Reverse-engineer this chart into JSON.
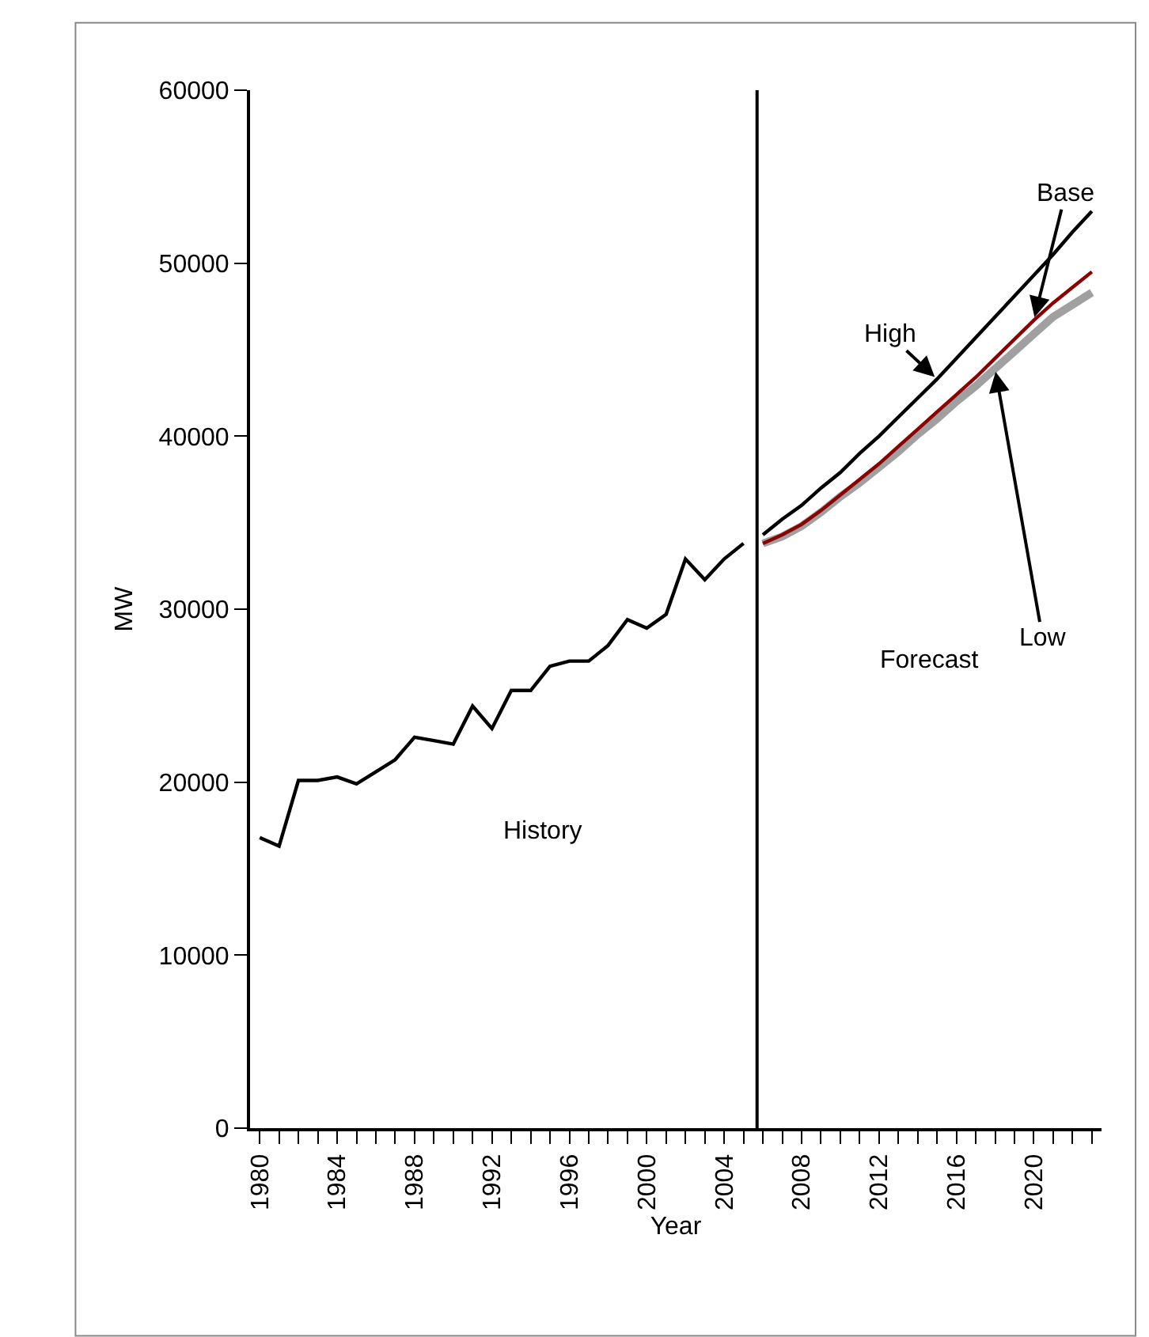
{
  "chart_data": {
    "type": "line",
    "xlabel": "Year",
    "ylabel": "MW",
    "xlim": [
      1979.5,
      2023.5
    ],
    "xticks": [
      {
        "value": 1980,
        "label": "1980"
      },
      {
        "value": 1981,
        "label": null
      },
      {
        "value": 1982,
        "label": null
      },
      {
        "value": 1983,
        "label": null
      },
      {
        "value": 1984,
        "label": "1984"
      },
      {
        "value": 1985,
        "label": null
      },
      {
        "value": 1986,
        "label": null
      },
      {
        "value": 1987,
        "label": null
      },
      {
        "value": 1988,
        "label": "1988"
      },
      {
        "value": 1989,
        "label": null
      },
      {
        "value": 1990,
        "label": null
      },
      {
        "value": 1991,
        "label": null
      },
      {
        "value": 1992,
        "label": "1992"
      },
      {
        "value": 1993,
        "label": null
      },
      {
        "value": 1994,
        "label": null
      },
      {
        "value": 1995,
        "label": null
      },
      {
        "value": 1996,
        "label": "1996"
      },
      {
        "value": 1997,
        "label": null
      },
      {
        "value": 1998,
        "label": null
      },
      {
        "value": 1999,
        "label": null
      },
      {
        "value": 2000,
        "label": "2000"
      },
      {
        "value": 2001,
        "label": null
      },
      {
        "value": 2002,
        "label": null
      },
      {
        "value": 2003,
        "label": null
      },
      {
        "value": 2004,
        "label": "2004"
      },
      {
        "value": 2005,
        "label": null
      },
      {
        "value": 2006,
        "label": null
      },
      {
        "value": 2007,
        "label": null
      },
      {
        "value": 2008,
        "label": "2008"
      },
      {
        "value": 2009,
        "label": null
      },
      {
        "value": 2010,
        "label": null
      },
      {
        "value": 2011,
        "label": null
      },
      {
        "value": 2012,
        "label": "2012"
      },
      {
        "value": 2013,
        "label": null
      },
      {
        "value": 2014,
        "label": null
      },
      {
        "value": 2015,
        "label": null
      },
      {
        "value": 2016,
        "label": "2016"
      },
      {
        "value": 2017,
        "label": null
      },
      {
        "value": 2018,
        "label": null
      },
      {
        "value": 2019,
        "label": null
      },
      {
        "value": 2020,
        "label": "2020"
      },
      {
        "value": 2021,
        "label": null
      },
      {
        "value": 2022,
        "label": null
      },
      {
        "value": 2023,
        "label": null
      }
    ],
    "ylim": [
      0,
      60000
    ],
    "yticks": [
      0,
      10000,
      20000,
      30000,
      40000,
      50000,
      60000
    ],
    "grid": false,
    "legend": false,
    "marker": "none",
    "line_style": "solid",
    "series": [
      {
        "color": "#a0a0a0",
        "name": "Low",
        "x": [
          2006,
          2007,
          2008,
          2009,
          2010,
          2011,
          2012,
          2013,
          2014,
          2015,
          2016,
          2017,
          2018,
          2019,
          2020,
          2021,
          2022,
          2023
        ],
        "values": [
          33800,
          34200,
          34800,
          35600,
          36500,
          37300,
          38200,
          39100,
          40100,
          41000,
          42000,
          42900,
          43900,
          44900,
          45900,
          46900,
          47600,
          48300
        ]
      },
      {
        "color": "#8b0000",
        "name": "Base",
        "x": [
          2006,
          2007,
          2008,
          2009,
          2010,
          2011,
          2012,
          2013,
          2014,
          2015,
          2016,
          2017,
          2018,
          2019,
          2020,
          2021,
          2022,
          2023
        ],
        "values": [
          33800,
          34300,
          34900,
          35700,
          36600,
          37500,
          38400,
          39400,
          40400,
          41400,
          42400,
          43400,
          44500,
          45600,
          46700,
          47700,
          48600,
          49500
        ]
      },
      {
        "color": "#000000",
        "name": "High",
        "x": [
          2006,
          2007,
          2008,
          2009,
          2010,
          2011,
          2012,
          2013,
          2014,
          2015,
          2016,
          2017,
          2018,
          2019,
          2020,
          2021,
          2022,
          2023
        ],
        "values": [
          34300,
          35200,
          36000,
          37000,
          37900,
          39000,
          40000,
          41100,
          42200,
          43300,
          44500,
          45700,
          46900,
          48100,
          49300,
          50500,
          51800,
          53000
        ]
      },
      {
        "color": "#000000",
        "x": [
          1980,
          1981,
          1982,
          1983,
          1984,
          1985,
          1986,
          1987,
          1988,
          1989,
          1990,
          1991,
          1992,
          1993,
          1994,
          1995,
          1996,
          1997,
          1998,
          1999,
          2000,
          2001,
          2002,
          2003,
          2004,
          2005
        ],
        "values": [
          16800,
          16300,
          20100,
          20100,
          20300,
          19900,
          20600,
          21300,
          22600,
          22400,
          22200,
          24400,
          23100,
          25300,
          25300,
          26700,
          27000,
          27000,
          27900,
          29400,
          28900,
          29700,
          32900,
          31700,
          32900,
          33800
        ]
      }
    ],
    "ref_lines": [
      {
        "axis": "x",
        "value": 2005.7,
        "color": "#000000"
      }
    ],
    "annotations": [
      "History",
      "Forecast"
    ]
  }
}
